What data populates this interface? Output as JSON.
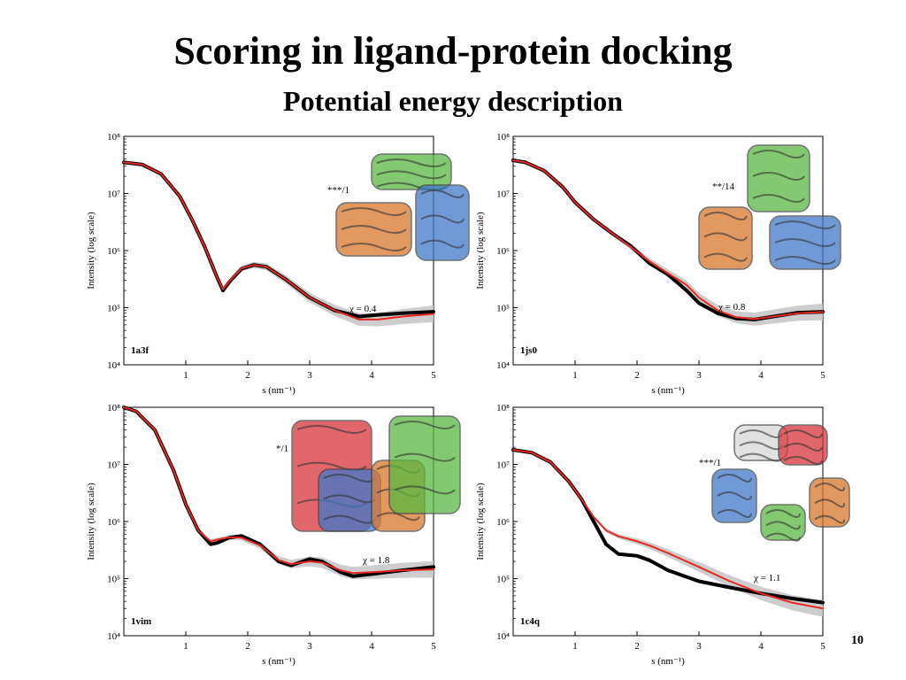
{
  "slide": {
    "title": "Scoring in ligand-protein docking",
    "subtitle": "Potential energy description",
    "page_number": "10"
  },
  "colors": {
    "experimental": "#000000",
    "fit": "#e8281e",
    "error_band": "#c8c8c8"
  },
  "chart_data": [
    {
      "type": "line",
      "panel_label": "1a3f",
      "annotation": "***/1",
      "chi_text": "χ = 0.4",
      "xlabel": "s (nm⁻¹)",
      "ylabel": "Intensity (log scale)",
      "y_scale": "log",
      "xlim": [
        0,
        5
      ],
      "ylim": [
        10000,
        100000000
      ],
      "x_ticks": [
        "1",
        "2",
        "3",
        "4",
        "5"
      ],
      "y_ticks": [
        "10⁴",
        "10⁵",
        "10⁶",
        "10⁷",
        "10⁸"
      ],
      "inset": "protein structure rendering (green, orange, blue domains)",
      "series": [
        {
          "x": [
            0.0,
            0.3,
            0.6,
            0.9,
            1.1,
            1.3,
            1.5,
            1.6,
            1.7,
            1.9,
            2.1,
            2.3,
            2.6,
            3.0,
            3.4,
            3.8,
            4.1,
            4.5,
            5.0
          ],
          "y": [
            35000000,
            32000000,
            22000000,
            9000000,
            3500000,
            1200000,
            350000,
            200000,
            280000,
            480000,
            560000,
            520000,
            320000,
            150000,
            90000,
            70000,
            75000,
            80000,
            85000
          ]
        },
        {
          "x": [
            0.0,
            0.3,
            0.6,
            0.9,
            1.1,
            1.3,
            1.5,
            1.6,
            1.7,
            1.9,
            2.1,
            2.3,
            2.6,
            3.0,
            3.4,
            3.8,
            4.1,
            4.5,
            5.0
          ],
          "y": [
            35000000,
            32000000,
            22000000,
            9000000,
            3500000,
            1200000,
            350000,
            210000,
            290000,
            490000,
            560000,
            520000,
            320000,
            150000,
            90000,
            62000,
            62000,
            70000,
            78000
          ]
        }
      ]
    },
    {
      "type": "line",
      "panel_label": "1js0",
      "annotation": "**/14",
      "chi_text": "χ = 0.8",
      "xlabel": "s (nm⁻¹)",
      "ylabel": "Intensity (log scale)",
      "y_scale": "log",
      "xlim": [
        0,
        5
      ],
      "ylim": [
        10000,
        100000000
      ],
      "x_ticks": [
        "1",
        "2",
        "3",
        "4",
        "5"
      ],
      "y_ticks": [
        "10⁴",
        "10⁵",
        "10⁶",
        "10⁷",
        "10⁸"
      ],
      "inset": "protein structure rendering (green, orange, blue domains)",
      "series": [
        {
          "x": [
            0.0,
            0.2,
            0.5,
            0.8,
            1.0,
            1.3,
            1.6,
            1.9,
            2.2,
            2.5,
            2.8,
            3.0,
            3.3,
            3.6,
            3.9,
            4.2,
            4.6,
            5.0
          ],
          "y": [
            38000000,
            35000000,
            25000000,
            13000000,
            7000000,
            3500000,
            2000000,
            1200000,
            600000,
            380000,
            200000,
            120000,
            80000,
            65000,
            62000,
            70000,
            82000,
            85000
          ]
        },
        {
          "x": [
            0.0,
            0.2,
            0.5,
            0.8,
            1.0,
            1.3,
            1.6,
            1.9,
            2.2,
            2.5,
            2.8,
            3.0,
            3.3,
            3.6,
            3.9,
            4.2,
            4.6,
            5.0
          ],
          "y": [
            38000000,
            35000000,
            25000000,
            13000000,
            7000000,
            3500000,
            2000000,
            1150000,
            650000,
            400000,
            250000,
            150000,
            90000,
            68000,
            63000,
            70000,
            80000,
            84000
          ]
        }
      ]
    },
    {
      "type": "line",
      "panel_label": "1vim",
      "annotation": "*/1",
      "chi_text": "χ = 1.8",
      "xlabel": "s (nm⁻¹)",
      "ylabel": "Intensity (log scale)",
      "y_scale": "log",
      "xlim": [
        0,
        5
      ],
      "ylim": [
        10000,
        100000000
      ],
      "x_ticks": [
        "1",
        "2",
        "3",
        "4",
        "5"
      ],
      "y_ticks": [
        "10⁴",
        "10⁵",
        "10⁶",
        "10⁷",
        "10⁸"
      ],
      "inset": "protein structure rendering (red, blue, orange, green domains)",
      "series": [
        {
          "x": [
            0.0,
            0.2,
            0.5,
            0.8,
            1.0,
            1.2,
            1.4,
            1.5,
            1.7,
            1.9,
            2.2,
            2.5,
            2.7,
            3.0,
            3.2,
            3.5,
            3.7,
            4.0,
            4.5,
            5.0
          ],
          "y": [
            100000000,
            85000000,
            40000000,
            8000000,
            2000000,
            700000,
            400000,
            420000,
            520000,
            560000,
            400000,
            200000,
            170000,
            220000,
            200000,
            130000,
            110000,
            120000,
            140000,
            160000
          ]
        },
        {
          "x": [
            0.0,
            0.2,
            0.5,
            0.8,
            1.0,
            1.2,
            1.4,
            1.5,
            1.7,
            1.9,
            2.2,
            2.5,
            2.7,
            3.0,
            3.2,
            3.5,
            3.7,
            4.0,
            4.5,
            5.0
          ],
          "y": [
            100000000,
            85000000,
            40000000,
            8000000,
            2000000,
            700000,
            450000,
            480000,
            530000,
            520000,
            380000,
            210000,
            180000,
            200000,
            190000,
            140000,
            125000,
            130000,
            140000,
            145000
          ]
        }
      ]
    },
    {
      "type": "line",
      "panel_label": "1c4q",
      "annotation": "***/1",
      "chi_text": "χ = 1.1",
      "xlabel": "s (nm⁻¹)",
      "ylabel": "Intensity (log scale)",
      "y_scale": "log",
      "xlim": [
        0,
        5
      ],
      "ylim": [
        10000,
        100000000
      ],
      "x_ticks": [
        "1",
        "2",
        "3",
        "4",
        "5"
      ],
      "y_ticks": [
        "10⁴",
        "10⁵",
        "10⁶",
        "10⁷",
        "10⁸"
      ],
      "inset": "protein structure rendering (pentameric ring, multicolored)",
      "series": [
        {
          "x": [
            0.0,
            0.3,
            0.6,
            0.9,
            1.1,
            1.3,
            1.5,
            1.7,
            2.0,
            2.2,
            2.5,
            3.0,
            3.5,
            4.0,
            4.5,
            5.0
          ],
          "y": [
            18000000,
            16000000,
            11000000,
            5000000,
            2500000,
            1000000,
            400000,
            270000,
            250000,
            210000,
            140000,
            90000,
            70000,
            55000,
            45000,
            38000
          ]
        },
        {
          "x": [
            0.0,
            0.3,
            0.6,
            0.9,
            1.1,
            1.3,
            1.5,
            1.7,
            2.0,
            2.2,
            2.5,
            3.0,
            3.5,
            4.0,
            4.5,
            5.0
          ],
          "y": [
            18000000,
            16000000,
            11000000,
            5000000,
            2500000,
            1200000,
            700000,
            550000,
            450000,
            380000,
            280000,
            160000,
            90000,
            55000,
            38000,
            30000
          ]
        }
      ]
    }
  ]
}
